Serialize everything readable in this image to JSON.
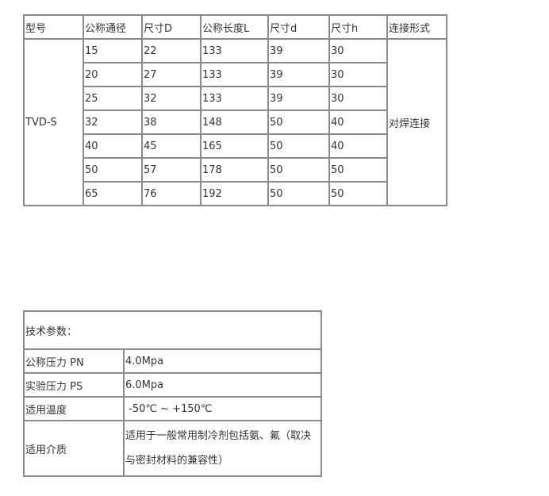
{
  "spec_table": {
    "headers": [
      "型号",
      "公称通径",
      "尺寸D",
      "公称长度L",
      "尺寸d",
      "尺寸h",
      "连接形式"
    ],
    "model": "TVD-S",
    "connection": "对焊连接",
    "rows": [
      [
        "15",
        "22",
        "133",
        "39",
        "30"
      ],
      [
        "20",
        "27",
        "133",
        "39",
        "30"
      ],
      [
        "25",
        "32",
        "133",
        "39",
        "30"
      ],
      [
        "32",
        "38",
        "148",
        "50",
        "40"
      ],
      [
        "40",
        "45",
        "165",
        "50",
        "40"
      ],
      [
        "50",
        "57",
        "178",
        "50",
        "50"
      ],
      [
        "65",
        "76",
        "192",
        "50",
        "50"
      ]
    ]
  },
  "tech_table": {
    "title": "技术参数：",
    "rows": [
      {
        "label": "公称压力 PN",
        "value": "4.0Mpa"
      },
      {
        "label": "实验压力 PS",
        "value": "6.0Mpa"
      },
      {
        "label": "适用温度",
        "value": " -50℃ ~ +150℃"
      },
      {
        "label": "适用介质",
        "value": "适用于一般常用制冷剂包括氨、氟（取决与密封材料的兼容性）"
      }
    ]
  }
}
